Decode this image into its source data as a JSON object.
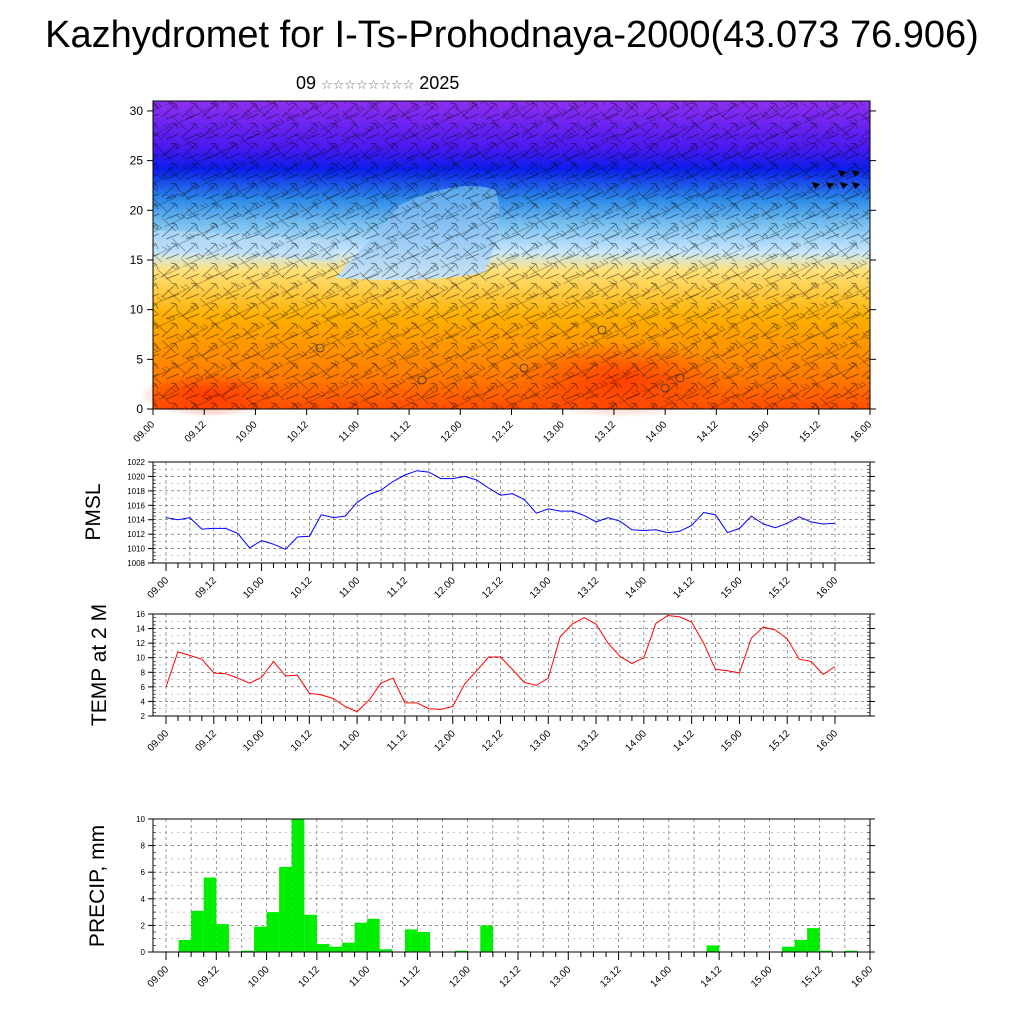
{
  "header": {
    "title": "Kazhydromet for I-Ts-Prohodnaya-2000(43.073 76.906)",
    "subtitle_day": "09",
    "subtitle_stars": "☆☆☆☆☆☆☆☆",
    "subtitle_year": "2025"
  },
  "chart_data": [
    {
      "type": "heatmap",
      "panel": "cross-section",
      "title": "",
      "x_ticks": [
        "09.00",
        "09.12",
        "10.00",
        "10.12",
        "11.00",
        "11.12",
        "12.00",
        "12.12",
        "13.00",
        "13.12",
        "14.00",
        "14.12",
        "15.00",
        "15.12",
        "16.00"
      ],
      "y_ticks": [
        "0",
        "5",
        "10",
        "15",
        "20",
        "25",
        "30"
      ],
      "ylim": [
        0,
        31
      ],
      "overlay": "wind barbs",
      "colors": {
        "low": "#ff5a00",
        "mid": "#ffe070",
        "cold": "#70c0f0",
        "top": "#8a2be2"
      }
    },
    {
      "type": "line",
      "panel": "pmsl",
      "ylabel": "PMSL",
      "color": "#0000ff",
      "ylim": [
        1008,
        1022
      ],
      "y_ticks": [
        "1008",
        "1010",
        "1012",
        "1014",
        "1016",
        "1018",
        "1020",
        "1022"
      ],
      "x_ticks": [
        "09.00",
        "09.12",
        "10.00",
        "10.12",
        "11.00",
        "11.12",
        "12.00",
        "12.12",
        "13.00",
        "13.12",
        "14.00",
        "14.12",
        "15.00",
        "15.12",
        "16.00"
      ],
      "x": [
        0,
        3,
        6,
        9,
        12,
        15,
        18,
        21,
        24,
        27,
        30,
        33,
        36,
        39,
        42,
        45,
        48,
        51,
        54,
        57,
        60,
        63,
        66,
        69,
        72,
        75,
        78,
        81,
        84,
        87,
        90,
        93,
        96,
        99,
        102,
        105,
        108,
        111,
        114,
        117,
        120,
        123,
        126,
        129,
        132,
        135,
        138,
        141,
        144,
        147,
        150,
        153,
        156,
        159,
        162,
        165,
        168
      ],
      "values": [
        1014.3,
        1014.0,
        1014.3,
        1012.7,
        1012.8,
        1012.8,
        1012.1,
        1010.1,
        1011.1,
        1010.6,
        1009.9,
        1011.6,
        1011.7,
        1014.7,
        1014.3,
        1014.5,
        1016.4,
        1017.5,
        1018.1,
        1019.3,
        1020.2,
        1020.8,
        1020.6,
        1019.7,
        1019.7,
        1020.0,
        1019.5,
        1018.4,
        1017.4,
        1017.6,
        1016.8,
        1014.9,
        1015.5,
        1015.2,
        1015.2,
        1014.6,
        1013.7,
        1014.3,
        1013.8,
        1012.6,
        1012.5,
        1012.6,
        1012.2,
        1012.4,
        1013.2,
        1015.0,
        1014.7,
        1012.2,
        1012.8,
        1014.5,
        1013.4,
        1012.9,
        1013.5,
        1014.4,
        1013.7,
        1013.4,
        1013.5
      ]
    },
    {
      "type": "line",
      "panel": "temp",
      "ylabel": "TEMP at 2 M",
      "color": "#ff0000",
      "ylim": [
        2,
        16
      ],
      "y_ticks": [
        "2",
        "4",
        "6",
        "8",
        "10",
        "12",
        "14",
        "16"
      ],
      "x_ticks": [
        "09.00",
        "09.12",
        "10.00",
        "10.12",
        "11.00",
        "11.12",
        "12.00",
        "12.12",
        "13.00",
        "13.12",
        "14.00",
        "14.12",
        "15.00",
        "15.12",
        "16.00"
      ],
      "x": [
        0,
        3,
        6,
        9,
        12,
        15,
        18,
        21,
        24,
        27,
        30,
        33,
        36,
        39,
        42,
        45,
        48,
        51,
        54,
        57,
        60,
        63,
        66,
        69,
        72,
        75,
        78,
        81,
        84,
        87,
        90,
        93,
        96,
        99,
        102,
        105,
        108,
        111,
        114,
        117,
        120,
        123,
        126,
        129,
        132,
        135,
        138,
        141,
        144,
        147,
        150,
        153,
        156,
        159,
        162,
        165,
        168
      ],
      "values": [
        6.0,
        10.8,
        10.3,
        9.8,
        7.9,
        7.8,
        7.2,
        6.5,
        7.3,
        9.5,
        7.5,
        7.6,
        5.1,
        4.9,
        4.4,
        3.3,
        2.6,
        4.2,
        6.5,
        7.2,
        3.8,
        3.8,
        3.0,
        2.9,
        3.3,
        6.4,
        8.2,
        10.1,
        10.1,
        8.4,
        6.6,
        6.2,
        7.2,
        12.9,
        14.6,
        15.5,
        14.6,
        12.0,
        10.2,
        9.2,
        10.0,
        14.7,
        15.8,
        15.6,
        14.9,
        12.0,
        8.4,
        8.2,
        7.9,
        12.7,
        14.2,
        13.8,
        12.6,
        9.8,
        9.5,
        7.7,
        8.8
      ]
    },
    {
      "type": "bar",
      "panel": "precip",
      "ylabel": "PRECIP, mm",
      "color": "#00ee00",
      "ylim": [
        0,
        10
      ],
      "y_ticks": [
        "0",
        "2",
        "4",
        "6",
        "8",
        "10"
      ],
      "x_ticks": [
        "09.00",
        "09.12",
        "10.00",
        "10.12",
        "11.00",
        "11.12",
        "12.00",
        "12.12",
        "13.00",
        "13.12",
        "14.00",
        "14.12",
        "15.00",
        "15.12",
        "16.00"
      ],
      "bar_hours": 3,
      "values": [
        0.0,
        0.9,
        3.1,
        5.6,
        2.1,
        0.0,
        0.1,
        1.9,
        3.0,
        6.4,
        10.0,
        2.8,
        0.6,
        0.4,
        0.7,
        2.2,
        2.5,
        0.2,
        0.0,
        1.7,
        1.5,
        0.0,
        0.0,
        0.1,
        0.0,
        2.0,
        0.0,
        0.0,
        0.0,
        0.0,
        0.0,
        0.0,
        0.0,
        0.0,
        0.0,
        0.0,
        0.0,
        0.0,
        0.0,
        0.0,
        0.0,
        0.0,
        0.0,
        0.5,
        0.0,
        0.0,
        0.0,
        0.0,
        0.0,
        0.4,
        0.9,
        1.8,
        0.1,
        0.0,
        0.1,
        0.0
      ]
    }
  ]
}
